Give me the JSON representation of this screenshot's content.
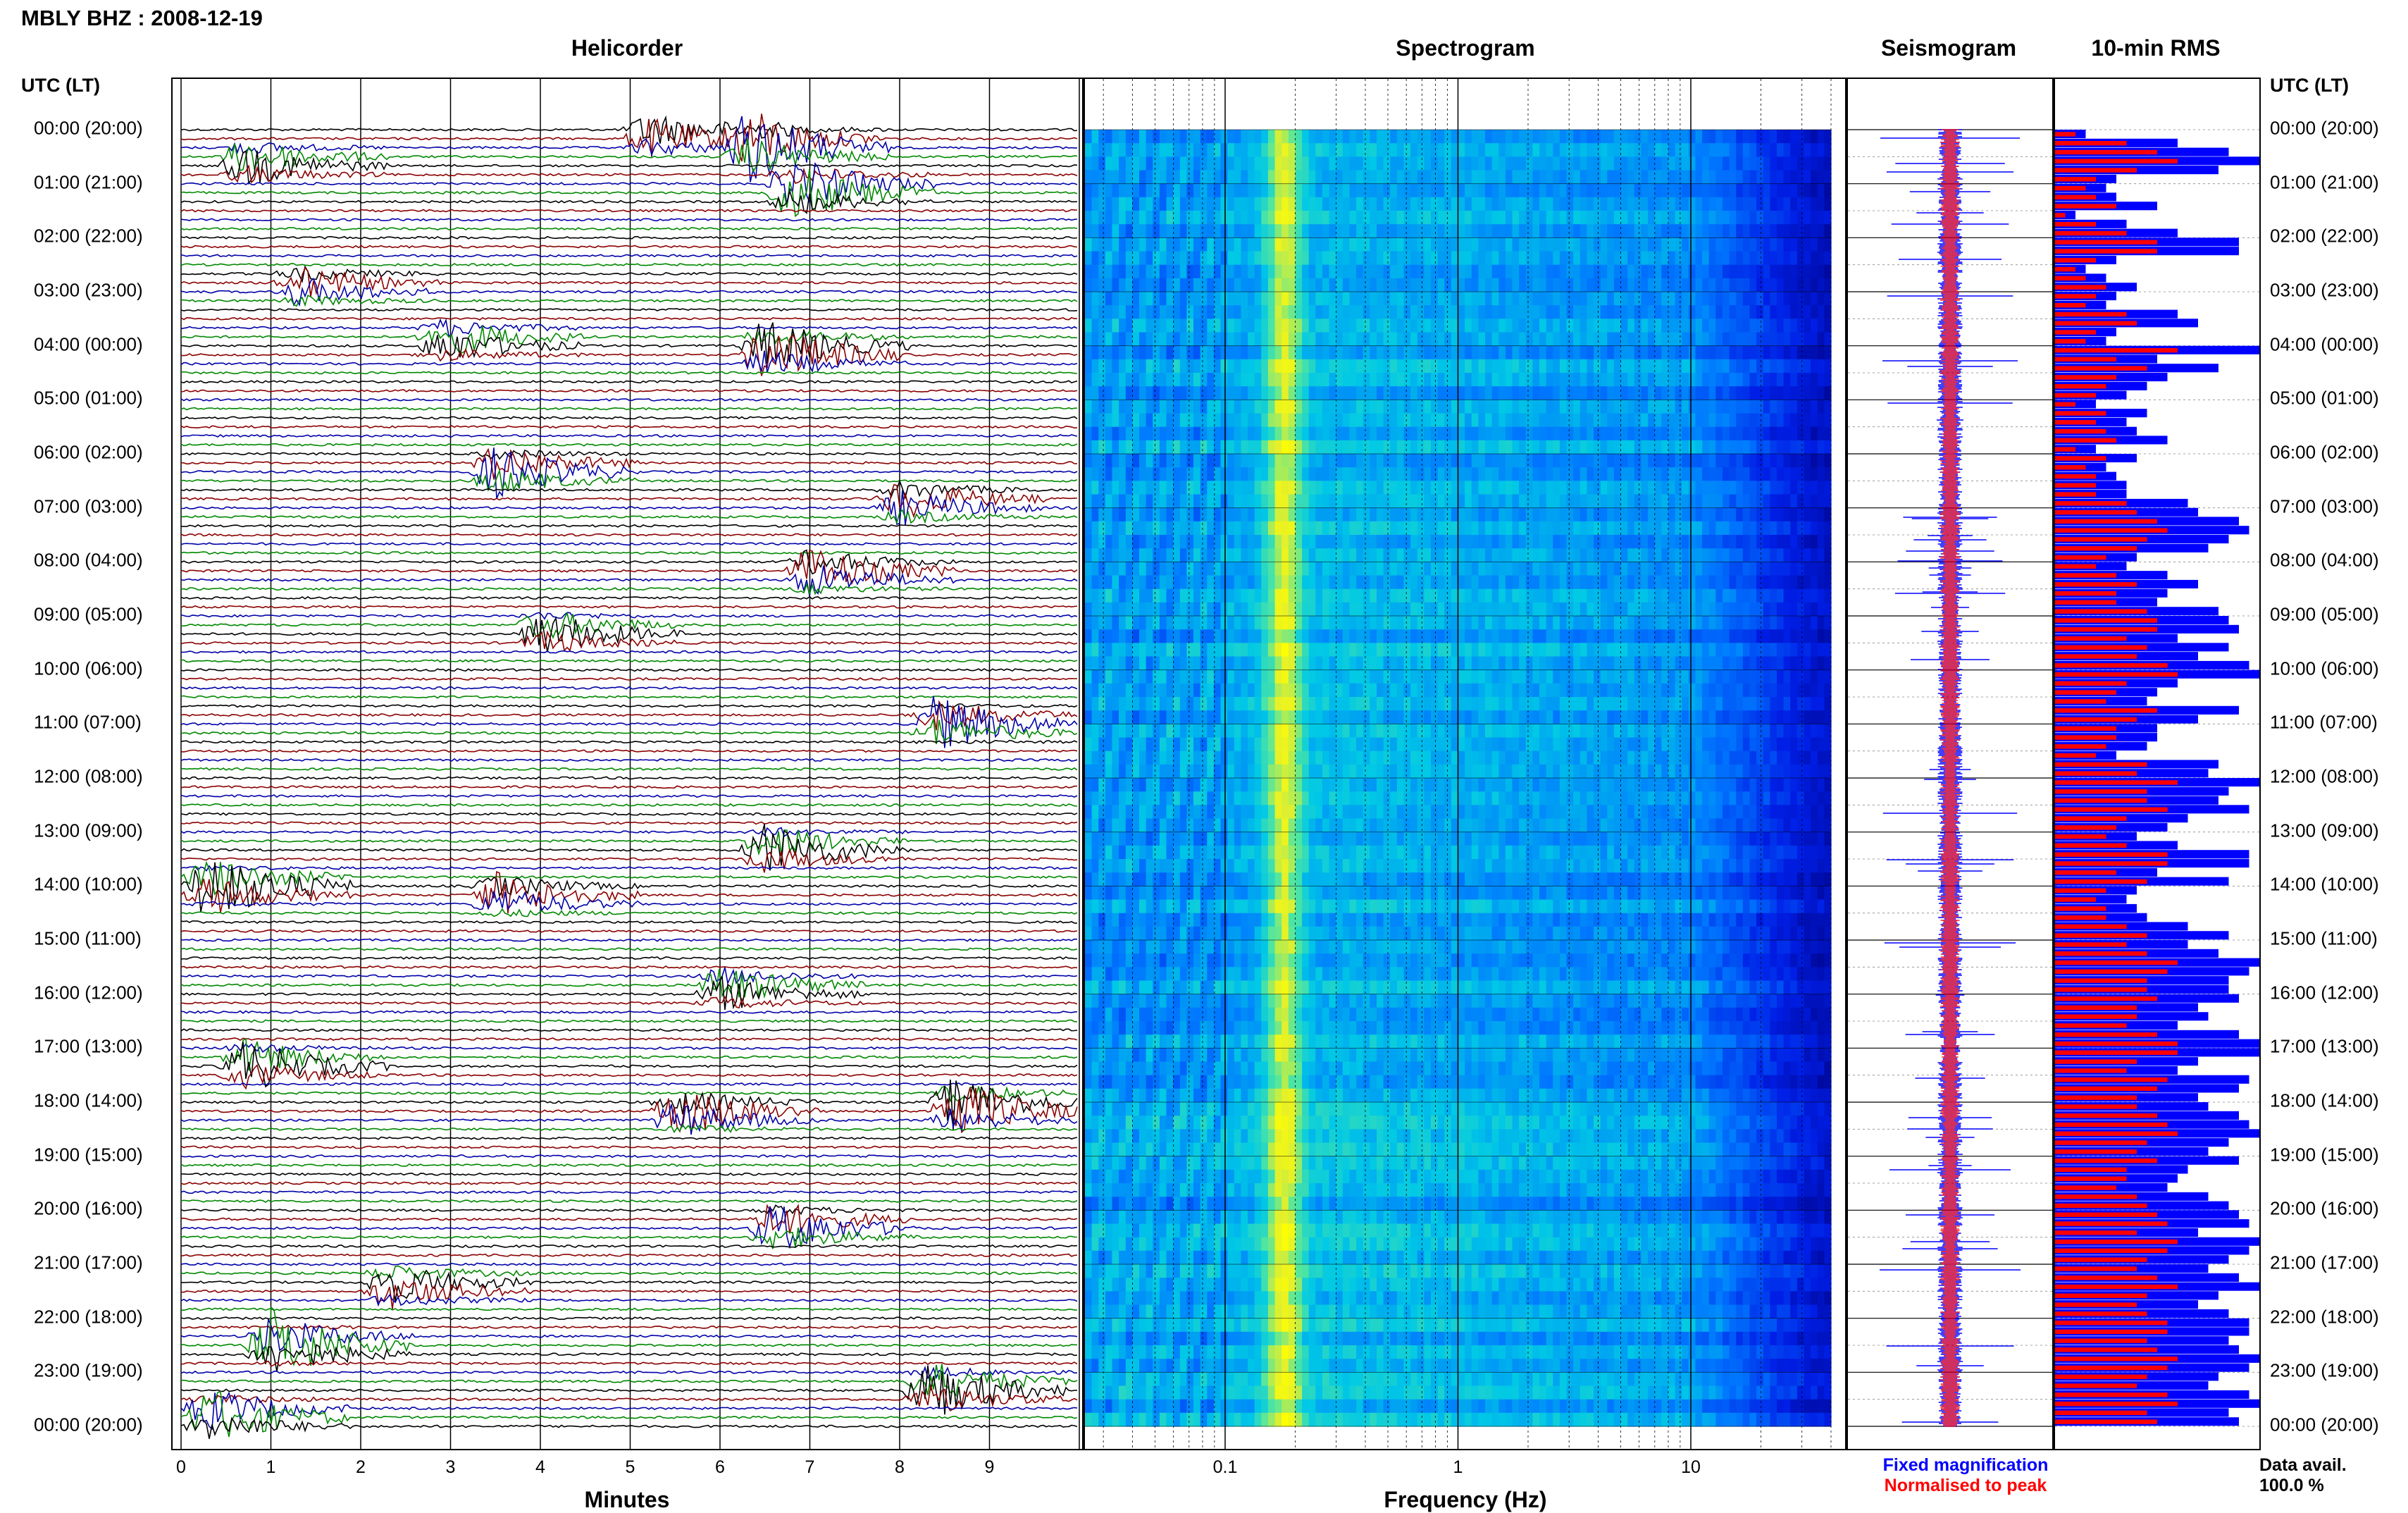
{
  "title": "MBLY BHZ : 2008-12-19",
  "panels": {
    "helicorder": "Helicorder",
    "spectrogram": "Spectrogram",
    "seismogram": "Seismogram",
    "rms": "10-min RMS"
  },
  "utc_header": "UTC (LT)",
  "time_labels": [
    "00:00 (20:00)",
    "01:00 (21:00)",
    "02:00 (22:00)",
    "03:00 (23:00)",
    "04:00 (00:00)",
    "05:00 (01:00)",
    "06:00 (02:00)",
    "07:00 (03:00)",
    "08:00 (04:00)",
    "09:00 (05:00)",
    "10:00 (06:00)",
    "11:00 (07:00)",
    "12:00 (08:00)",
    "13:00 (09:00)",
    "14:00 (10:00)",
    "15:00 (11:00)",
    "16:00 (12:00)",
    "17:00 (13:00)",
    "18:00 (14:00)",
    "19:00 (15:00)",
    "20:00 (16:00)",
    "21:00 (17:00)",
    "22:00 (18:00)",
    "23:00 (19:00)",
    "00:00 (20:00)"
  ],
  "minutes_axis": {
    "title": "Minutes",
    "ticks": [
      "0",
      "1",
      "2",
      "3",
      "4",
      "5",
      "6",
      "7",
      "8",
      "9"
    ]
  },
  "frequency_axis": {
    "title": "Frequency (Hz)",
    "ticks": [
      "0.1",
      "1",
      "10"
    ]
  },
  "legend": {
    "fixed": "Fixed magnification",
    "normalised": "Normalised to peak"
  },
  "data_availability": {
    "label": "Data avail.",
    "value": "100.0 %"
  },
  "colors": {
    "trace_cycle": [
      "#000000",
      "#8b0000",
      "#0000aa",
      "#008800"
    ],
    "rms_fixed": "#0000ff",
    "rms_normalised": "#ff0000",
    "spectrogram_low": "#00007f",
    "spectrogram_high": "#ffff00"
  },
  "chart_data": [
    {
      "type": "line",
      "title": "Helicorder",
      "xlabel": "Minutes",
      "x_range": [
        0,
        10
      ],
      "y_range": [
        "00:00 (20:00)",
        "00:00 (20:00)"
      ],
      "rows": 144,
      "events": [
        {
          "hour": 0.1,
          "minute": 5.2,
          "amp": 0.6
        },
        {
          "hour": 0.3,
          "minute": 6.3,
          "amp": 1.0
        },
        {
          "hour": 0.6,
          "minute": 0.7,
          "amp": 0.6
        },
        {
          "hour": 1.1,
          "minute": 6.8,
          "amp": 0.9
        },
        {
          "hour": 2.9,
          "minute": 1.3,
          "amp": 0.5
        },
        {
          "hour": 3.9,
          "minute": 2.9,
          "amp": 0.6
        },
        {
          "hour": 4.1,
          "minute": 6.5,
          "amp": 0.9
        },
        {
          "hour": 6.3,
          "minute": 3.5,
          "amp": 0.7
        },
        {
          "hour": 6.9,
          "minute": 8.0,
          "amp": 0.6
        },
        {
          "hour": 8.2,
          "minute": 7.0,
          "amp": 0.7
        },
        {
          "hour": 9.3,
          "minute": 4.0,
          "amp": 0.6
        },
        {
          "hour": 11.0,
          "minute": 8.4,
          "amp": 0.7
        },
        {
          "hour": 13.3,
          "minute": 6.5,
          "amp": 0.7
        },
        {
          "hour": 14.0,
          "minute": 0.3,
          "amp": 0.9
        },
        {
          "hour": 14.2,
          "minute": 3.5,
          "amp": 0.6
        },
        {
          "hour": 15.9,
          "minute": 6.0,
          "amp": 0.6
        },
        {
          "hour": 17.3,
          "minute": 0.7,
          "amp": 0.7
        },
        {
          "hour": 18.1,
          "minute": 8.6,
          "amp": 0.9
        },
        {
          "hour": 18.2,
          "minute": 5.5,
          "amp": 0.7
        },
        {
          "hour": 20.3,
          "minute": 6.6,
          "amp": 0.7
        },
        {
          "hour": 21.4,
          "minute": 2.3,
          "amp": 0.6
        },
        {
          "hour": 22.5,
          "minute": 1.0,
          "amp": 0.9
        },
        {
          "hour": 23.3,
          "minute": 8.3,
          "amp": 0.8
        },
        {
          "hour": 23.8,
          "minute": 0.3,
          "amp": 0.8
        }
      ]
    },
    {
      "type": "heatmap",
      "title": "Spectrogram",
      "xlabel": "Frequency (Hz)",
      "x_scale": "log",
      "x_range": [
        0.025,
        40
      ],
      "bands": [
        {
          "freq": 0.18,
          "level": 0.85
        },
        {
          "freq": 0.3,
          "level": 0.6
        },
        {
          "freq": 3.0,
          "level": 0.55
        }
      ]
    },
    {
      "type": "line",
      "title": "Seismogram",
      "series": [
        {
          "name": "Fixed magnification",
          "color": "#0000ff"
        },
        {
          "name": "Normalised to peak",
          "color": "#ff0000"
        }
      ]
    },
    {
      "type": "bar",
      "title": "10-min RMS",
      "series": [
        {
          "name": "Fixed magnification",
          "values": [
            0.15,
            0.6,
            0.85,
            1.0,
            0.8,
            0.3,
            0.25,
            0.3,
            0.5,
            0.1,
            0.35,
            0.6,
            0.9,
            0.9,
            0.3,
            0.15,
            0.25,
            0.4,
            0.3,
            0.25,
            0.6,
            0.7,
            0.3,
            0.25,
            1.0,
            0.5,
            0.8,
            0.55,
            0.45,
            0.35,
            0.2,
            0.45,
            0.35,
            0.4,
            0.55,
            0.2,
            0.4,
            0.25,
            0.3,
            0.35,
            0.35,
            0.65,
            0.7,
            0.9,
            0.95,
            0.85,
            0.75,
            0.4,
            0.35,
            0.55,
            0.7,
            0.55,
            0.5,
            0.8,
            0.85,
            0.9,
            0.6,
            0.85,
            0.7,
            0.95,
            1.0,
            0.6,
            0.5,
            0.45,
            0.9,
            0.7,
            0.5,
            0.5,
            0.45,
            0.3,
            0.8,
            0.75,
            1.0,
            0.85,
            0.8,
            0.95,
            0.65,
            0.55,
            0.4,
            0.6,
            0.95,
            0.95,
            0.5,
            0.85,
            0.4,
            0.35,
            0.4,
            0.45,
            0.65,
            0.85,
            0.65,
            0.8,
            1.0,
            0.95,
            0.85,
            0.85,
            0.9,
            0.7,
            0.75,
            0.6,
            0.9,
            1.0,
            1.0,
            0.7,
            0.6,
            0.95,
            0.9,
            0.7,
            0.75,
            0.9,
            0.95,
            1.0,
            0.85,
            0.75,
            0.9,
            0.65,
            0.6,
            0.55,
            0.75,
            0.85,
            0.9,
            0.95,
            0.7,
            1.0,
            0.95,
            0.85,
            0.75,
            0.9,
            1.0,
            0.8,
            0.7,
            0.85,
            0.95,
            0.95,
            0.85,
            0.9,
            1.0,
            0.95,
            0.8,
            0.75,
            0.95,
            1.0,
            0.85,
            0.9
          ]
        },
        {
          "name": "Normalised to peak",
          "values": [
            0.1,
            0.35,
            0.5,
            0.6,
            0.4,
            0.2,
            0.15,
            0.2,
            0.3,
            0.05,
            0.2,
            0.35,
            0.5,
            0.5,
            0.2,
            0.1,
            0.15,
            0.25,
            0.2,
            0.15,
            0.35,
            0.4,
            0.2,
            0.15,
            0.6,
            0.3,
            0.45,
            0.3,
            0.25,
            0.2,
            0.1,
            0.25,
            0.2,
            0.25,
            0.3,
            0.1,
            0.25,
            0.15,
            0.2,
            0.2,
            0.2,
            0.35,
            0.4,
            0.5,
            0.55,
            0.45,
            0.4,
            0.25,
            0.2,
            0.3,
            0.4,
            0.3,
            0.3,
            0.45,
            0.5,
            0.5,
            0.35,
            0.45,
            0.4,
            0.55,
            0.6,
            0.35,
            0.3,
            0.25,
            0.5,
            0.4,
            0.3,
            0.3,
            0.25,
            0.2,
            0.45,
            0.4,
            0.6,
            0.45,
            0.45,
            0.55,
            0.35,
            0.3,
            0.25,
            0.35,
            0.55,
            0.55,
            0.3,
            0.45,
            0.25,
            0.2,
            0.25,
            0.25,
            0.35,
            0.45,
            0.35,
            0.45,
            0.6,
            0.55,
            0.45,
            0.45,
            0.5,
            0.4,
            0.4,
            0.35,
            0.5,
            0.6,
            0.6,
            0.4,
            0.35,
            0.55,
            0.5,
            0.4,
            0.4,
            0.5,
            0.55,
            0.6,
            0.45,
            0.4,
            0.5,
            0.35,
            0.35,
            0.3,
            0.4,
            0.45,
            0.5,
            0.55,
            0.4,
            0.6,
            0.55,
            0.45,
            0.4,
            0.5,
            0.6,
            0.45,
            0.4,
            0.45,
            0.55,
            0.55,
            0.45,
            0.5,
            0.6,
            0.55,
            0.45,
            0.4,
            0.55,
            0.6,
            0.45,
            0.5
          ]
        }
      ]
    }
  ]
}
